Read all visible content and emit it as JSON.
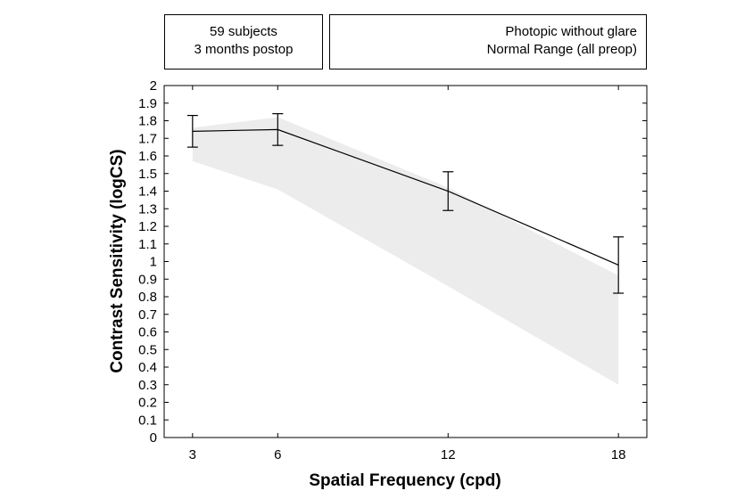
{
  "legend": {
    "left_line1": "59 subjects",
    "left_line2": "3 months postop",
    "right_line1": "Photopic without glare",
    "right_line2": "Normal Range (all preop)"
  },
  "chart_data": {
    "type": "line",
    "xlabel": "Spatial Frequency (cpd)",
    "ylabel": "Contrast Sensitivity (logCS)",
    "xlim": [
      2,
      19
    ],
    "ylim": [
      0,
      2
    ],
    "xticks": [
      3,
      6,
      12,
      18
    ],
    "yticks": [
      "0",
      "0.1",
      "0.2",
      "0.3",
      "0.4",
      "0.5",
      "0.6",
      "0.7",
      "0.8",
      "0.9",
      "1",
      "1.1",
      "1.2",
      "1.3",
      "1.4",
      "1.5",
      "1.6",
      "1.7",
      "1.8",
      "1.9",
      "2"
    ],
    "grid": false,
    "series": [
      {
        "x": [
          3,
          6,
          12,
          18
        ],
        "y": [
          1.74,
          1.75,
          1.4,
          0.98
        ],
        "err_low": [
          1.65,
          1.66,
          1.29,
          0.82
        ],
        "err_high": [
          1.83,
          1.84,
          1.51,
          1.14
        ]
      }
    ],
    "normal_range": {
      "x": [
        3,
        6,
        12,
        18
      ],
      "upper": [
        1.76,
        1.82,
        1.42,
        0.92
      ],
      "lower": [
        1.57,
        1.41,
        0.86,
        0.3
      ],
      "color": "#ececec"
    },
    "line_color": "#000000"
  }
}
